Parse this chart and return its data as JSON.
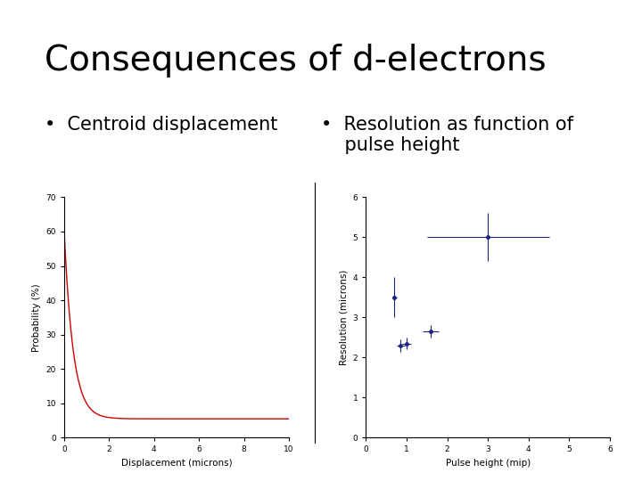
{
  "title": "Consequences of d-electrons",
  "title_fontsize": 28,
  "bullet1": "•  Centroid displacement",
  "bullet2": "•  Resolution as function of\n    pulse height",
  "bullet_fontsize": 15,
  "background_color": "#ffffff",
  "left_plot": {
    "xlabel": "Displacement (microns)",
    "ylabel": "Probability (%)",
    "xlim": [
      0,
      10
    ],
    "ylim": [
      0,
      70
    ],
    "xticks": [
      0,
      2,
      4,
      6,
      8,
      10
    ],
    "yticks": [
      0,
      10,
      20,
      30,
      40,
      50,
      60,
      70
    ],
    "curve_color": "#cc0000",
    "exp_A": 54.5,
    "exp_k": 2.5,
    "exp_C": 5.5
  },
  "right_plot": {
    "xlabel": "Pulse height (mip)",
    "ylabel": "Resolution (microns)",
    "xlim": [
      0,
      6
    ],
    "ylim": [
      0,
      6
    ],
    "xticks": [
      0,
      1,
      2,
      3,
      4,
      5,
      6
    ],
    "yticks": [
      0,
      1,
      2,
      3,
      4,
      5,
      6
    ],
    "point_color": "#1a237e",
    "data_x": [
      0.7,
      0.85,
      1.0,
      1.6,
      3.0
    ],
    "data_y": [
      3.5,
      2.3,
      2.35,
      2.65,
      5.0
    ],
    "xerr": [
      0.05,
      0.1,
      0.1,
      0.2,
      1.5
    ],
    "yerr": [
      0.5,
      0.15,
      0.15,
      0.15,
      0.6
    ]
  }
}
